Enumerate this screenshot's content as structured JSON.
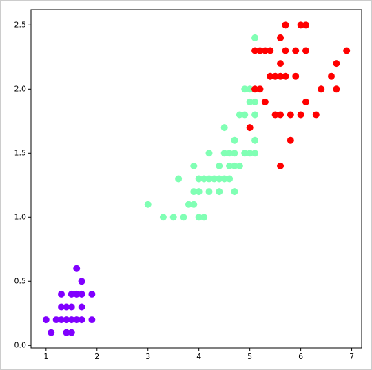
{
  "chart_data": {
    "type": "scatter",
    "xlim": [
      0.705,
      7.195
    ],
    "ylim": [
      -0.02,
      2.62
    ],
    "xticks": [
      1,
      2,
      3,
      4,
      5,
      6,
      7
    ],
    "yticks": [
      {
        "value": 0,
        "label": "0.0"
      },
      0.5,
      {
        "value": 1,
        "label": "1.0"
      },
      1.5,
      {
        "value": 2,
        "label": "2.0"
      },
      2.5
    ],
    "series": [
      {
        "color": "#8000ff",
        "x": [
          1.6,
          1.7,
          1.3,
          1.5,
          1.6,
          1.7,
          1.9,
          1.3,
          1.4,
          1.5,
          1.7,
          1.0,
          1.2,
          1.3,
          1.4,
          1.5,
          1.6,
          1.7,
          1.9,
          1.1,
          1.4,
          1.5
        ],
        "values": [
          0.6,
          0.5,
          0.4,
          0.4,
          0.4,
          0.4,
          0.4,
          0.3,
          0.3,
          0.3,
          0.3,
          0.2,
          0.2,
          0.2,
          0.2,
          0.2,
          0.2,
          0.2,
          0.2,
          0.1,
          0.1,
          0.1
        ]
      },
      {
        "color": "#80ffb4",
        "x": [
          5.1,
          4.9,
          5.0,
          5.0,
          5.1,
          4.8,
          4.9,
          5.1,
          4.5,
          4.7,
          5.1,
          4.2,
          4.5,
          4.6,
          4.7,
          4.9,
          5.0,
          5.1,
          3.9,
          4.4,
          4.6,
          4.7,
          4.8,
          3.6,
          4.0,
          4.1,
          4.2,
          4.3,
          4.4,
          4.5,
          4.6,
          3.9,
          4.0,
          4.2,
          4.4,
          4.7,
          3.0,
          3.8,
          3.9,
          3.3,
          3.5,
          3.7,
          4.0,
          4.1
        ],
        "values": [
          2.4,
          2.0,
          2.0,
          1.9,
          1.9,
          1.8,
          1.8,
          1.8,
          1.7,
          1.6,
          1.6,
          1.5,
          1.5,
          1.5,
          1.5,
          1.5,
          1.5,
          1.5,
          1.4,
          1.4,
          1.4,
          1.4,
          1.4,
          1.3,
          1.3,
          1.3,
          1.3,
          1.3,
          1.3,
          1.3,
          1.3,
          1.2,
          1.2,
          1.2,
          1.2,
          1.2,
          1.1,
          1.1,
          1.1,
          1.0,
          1.0,
          1.0,
          1.0,
          1.0
        ]
      },
      {
        "color": "#ff0000",
        "x": [
          5.7,
          6.0,
          6.1,
          5.6,
          5.1,
          5.2,
          5.3,
          5.4,
          5.7,
          5.9,
          6.1,
          6.9,
          5.6,
          6.7,
          5.4,
          5.5,
          5.6,
          5.7,
          5.9,
          6.6,
          5.1,
          5.2,
          6.4,
          6.7,
          5.3,
          6.1,
          5.5,
          5.6,
          5.8,
          6.0,
          6.3,
          5.0,
          5.8,
          5.6
        ],
        "values": [
          2.5,
          2.5,
          2.5,
          2.4,
          2.3,
          2.3,
          2.3,
          2.3,
          2.3,
          2.3,
          2.3,
          2.3,
          2.2,
          2.2,
          2.1,
          2.1,
          2.1,
          2.1,
          2.1,
          2.1,
          2.0,
          2.0,
          2.0,
          2.0,
          1.9,
          1.9,
          1.8,
          1.8,
          1.8,
          1.8,
          1.8,
          1.7,
          1.6,
          1.4
        ]
      }
    ]
  }
}
